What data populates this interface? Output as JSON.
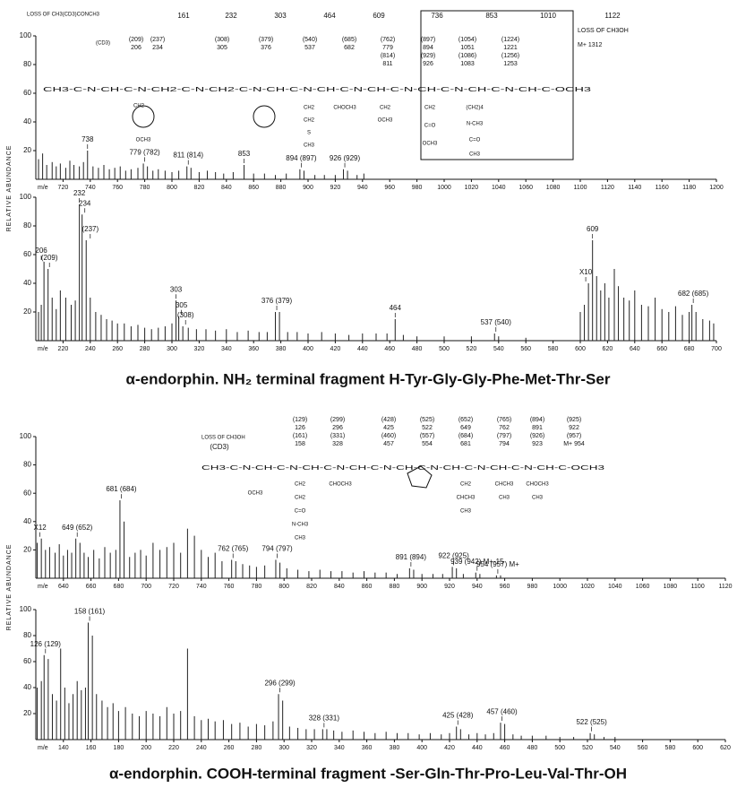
{
  "chart_data": [
    {
      "type": "bar",
      "y_label": "RELATIVE ABUNDANCE",
      "x_label": "m/e",
      "color": "#222222",
      "xlim": [
        700,
        1200
      ],
      "ylim": [
        0,
        100
      ],
      "xticks": [
        720,
        740,
        760,
        780,
        800,
        820,
        840,
        860,
        880,
        900,
        920,
        940,
        960,
        980,
        1000,
        1020,
        1040,
        1060,
        1080,
        1100,
        1120,
        1140,
        1160,
        1180,
        1200
      ],
      "yticks": [
        20,
        40,
        60,
        80,
        100
      ],
      "x": [
        702,
        705,
        708,
        712,
        715,
        718,
        722,
        725,
        728,
        732,
        735,
        738,
        742,
        746,
        750,
        754,
        758,
        762,
        766,
        770,
        775,
        779,
        782,
        786,
        790,
        795,
        800,
        805,
        811,
        814,
        820,
        826,
        832,
        838,
        845,
        853,
        860,
        868,
        876,
        884,
        894,
        897,
        905,
        912,
        920,
        926,
        929,
        936,
        941
      ],
      "values": [
        14,
        18,
        10,
        12,
        9,
        11,
        8,
        13,
        10,
        9,
        12,
        20,
        9,
        8,
        10,
        7,
        8,
        9,
        6,
        7,
        8,
        11,
        9,
        6,
        7,
        6,
        5,
        6,
        9,
        8,
        5,
        6,
        5,
        4,
        5,
        10,
        4,
        4,
        3,
        4,
        7,
        6,
        3,
        3,
        3,
        7,
        6,
        3,
        4
      ],
      "peak_labels": [
        {
          "text": "738",
          "x": 738
        },
        {
          "text": "779 (782)",
          "x": 780
        },
        {
          "text": "811 (814)",
          "x": 812
        },
        {
          "text": "853",
          "x": 853
        },
        {
          "text": "894 (897)",
          "x": 895
        },
        {
          "text": "926 (929)",
          "x": 927
        }
      ]
    },
    {
      "type": "bar",
      "x_label": "m/e",
      "color": "#222222",
      "xlim": [
        200,
        700
      ],
      "ylim": [
        0,
        100
      ],
      "xticks": [
        220,
        240,
        260,
        280,
        300,
        320,
        340,
        360,
        380,
        400,
        420,
        440,
        460,
        480,
        500,
        520,
        540,
        560,
        580,
        600,
        620,
        640,
        660,
        680,
        700
      ],
      "yticks": [
        20,
        40,
        60,
        80,
        100
      ],
      "x": [
        202,
        204,
        206,
        209,
        212,
        215,
        218,
        222,
        226,
        229,
        232,
        234,
        237,
        240,
        244,
        248,
        252,
        256,
        260,
        265,
        270,
        275,
        280,
        285,
        290,
        295,
        300,
        303,
        305,
        308,
        312,
        318,
        325,
        332,
        340,
        348,
        356,
        364,
        370,
        376,
        379,
        385,
        392,
        400,
        410,
        420,
        430,
        440,
        450,
        458,
        464,
        470,
        480,
        500,
        520,
        537,
        540,
        560,
        600,
        603,
        606,
        609,
        612,
        615,
        618,
        621,
        625,
        628,
        632,
        636,
        640,
        645,
        650,
        655,
        660,
        665,
        670,
        675,
        680,
        682,
        685,
        690,
        695,
        698
      ],
      "values": [
        20,
        25,
        55,
        50,
        30,
        22,
        35,
        30,
        25,
        28,
        95,
        88,
        70,
        30,
        20,
        18,
        15,
        14,
        12,
        12,
        10,
        11,
        9,
        8,
        9,
        10,
        12,
        28,
        17,
        10,
        9,
        8,
        8,
        7,
        8,
        6,
        7,
        6,
        6,
        20,
        20,
        6,
        6,
        5,
        6,
        5,
        4,
        5,
        5,
        5,
        15,
        4,
        3,
        3,
        3,
        5,
        3,
        2,
        20,
        25,
        40,
        70,
        45,
        35,
        40,
        30,
        50,
        38,
        30,
        28,
        35,
        25,
        24,
        30,
        22,
        20,
        24,
        18,
        20,
        25,
        20,
        15,
        14,
        12
      ],
      "peak_labels": [
        {
          "text": "206",
          "x": 204
        },
        {
          "text": "(209)",
          "x": 210
        },
        {
          "text": "232",
          "x": 232
        },
        {
          "text": "234",
          "x": 236
        },
        {
          "text": "(237)",
          "x": 240
        },
        {
          "text": "303",
          "x": 303
        },
        {
          "text": "305",
          "x": 307
        },
        {
          "text": "(308)",
          "x": 310
        },
        {
          "text": "376 (379)",
          "x": 377
        },
        {
          "text": "464",
          "x": 464
        },
        {
          "text": "537 (540)",
          "x": 538
        },
        {
          "text": "X10",
          "x": 604
        },
        {
          "text": "609",
          "x": 609
        },
        {
          "text": "682 (685)",
          "x": 683
        }
      ]
    },
    {
      "type": "bar",
      "y_label": "RELATIVE ABUNDANCE",
      "x_label": "m/e",
      "color": "#222222",
      "xlim": [
        620,
        1120
      ],
      "ylim": [
        0,
        100
      ],
      "xticks": [
        640,
        660,
        680,
        700,
        720,
        740,
        760,
        780,
        800,
        820,
        840,
        860,
        880,
        900,
        920,
        940,
        960,
        980,
        1000,
        1020,
        1040,
        1060,
        1080,
        1100,
        1120
      ],
      "yticks": [
        20,
        40,
        60,
        80,
        100
      ],
      "x": [
        621,
        624,
        627,
        630,
        634,
        637,
        640,
        643,
        646,
        649,
        652,
        655,
        658,
        662,
        666,
        670,
        674,
        678,
        681,
        684,
        688,
        692,
        696,
        700,
        705,
        710,
        715,
        720,
        725,
        730,
        735,
        740,
        745,
        750,
        755,
        762,
        765,
        770,
        775,
        780,
        786,
        794,
        797,
        802,
        810,
        818,
        826,
        834,
        842,
        850,
        858,
        866,
        874,
        882,
        891,
        894,
        900,
        908,
        915,
        922,
        925,
        930,
        939,
        942,
        954,
        957
      ],
      "values": [
        25,
        28,
        20,
        22,
        18,
        24,
        16,
        20,
        18,
        28,
        25,
        18,
        15,
        20,
        14,
        22,
        18,
        20,
        55,
        40,
        15,
        18,
        20,
        16,
        25,
        20,
        22,
        25,
        18,
        35,
        30,
        20,
        15,
        18,
        12,
        13,
        12,
        10,
        9,
        8,
        9,
        13,
        11,
        7,
        6,
        5,
        6,
        5,
        5,
        4,
        5,
        4,
        4,
        3,
        7,
        6,
        3,
        3,
        3,
        8,
        7,
        3,
        4,
        3,
        2,
        2
      ],
      "peak_labels": [
        {
          "text": "X12",
          "x": 623
        },
        {
          "text": "649 (652)",
          "x": 650
        },
        {
          "text": "681 (684)",
          "x": 682
        },
        {
          "text": "762 (765)",
          "x": 763
        },
        {
          "text": "794 (797)",
          "x": 795
        },
        {
          "text": "891 (894)",
          "x": 892
        },
        {
          "text": "922 (925)",
          "x": 923
        },
        {
          "text": "939 (942) M+-15",
          "x": 940
        },
        {
          "text": "954 (957) M+",
          "x": 955
        }
      ]
    },
    {
      "type": "bar",
      "x_label": "m/e",
      "color": "#222222",
      "xlim": [
        120,
        620
      ],
      "ylim": [
        0,
        100
      ],
      "xticks": [
        140,
        160,
        180,
        200,
        220,
        240,
        260,
        280,
        300,
        320,
        340,
        360,
        380,
        400,
        420,
        440,
        460,
        480,
        500,
        520,
        540,
        560,
        580,
        600,
        620
      ],
      "yticks": [
        20,
        40,
        60,
        80,
        100
      ],
      "x": [
        121,
        124,
        126,
        129,
        132,
        135,
        138,
        141,
        144,
        147,
        150,
        153,
        156,
        158,
        161,
        164,
        168,
        172,
        176,
        180,
        185,
        190,
        195,
        200,
        205,
        210,
        215,
        220,
        225,
        230,
        235,
        240,
        245,
        250,
        256,
        262,
        268,
        274,
        280,
        286,
        292,
        296,
        299,
        304,
        310,
        316,
        322,
        328,
        331,
        336,
        342,
        350,
        358,
        366,
        374,
        382,
        390,
        398,
        406,
        414,
        420,
        425,
        428,
        434,
        440,
        446,
        452,
        457,
        460,
        466,
        472,
        480,
        490,
        500,
        510,
        522,
        525,
        532,
        540
      ],
      "values": [
        40,
        45,
        65,
        62,
        35,
        30,
        70,
        40,
        28,
        35,
        45,
        38,
        40,
        90,
        80,
        35,
        30,
        25,
        28,
        22,
        25,
        20,
        18,
        22,
        20,
        18,
        25,
        20,
        22,
        70,
        18,
        15,
        16,
        14,
        15,
        12,
        13,
        10,
        12,
        11,
        14,
        35,
        30,
        10,
        9,
        8,
        8,
        8,
        8,
        7,
        6,
        7,
        6,
        5,
        6,
        5,
        5,
        4,
        5,
        4,
        5,
        10,
        8,
        4,
        5,
        4,
        5,
        13,
        12,
        4,
        3,
        3,
        3,
        2,
        2,
        5,
        4,
        2,
        2
      ],
      "peak_labels": [
        {
          "text": "126 (129)",
          "x": 127
        },
        {
          "text": "158 (161)",
          "x": 159
        },
        {
          "text": "296 (299)",
          "x": 297
        },
        {
          "text": "328 (331)",
          "x": 329
        },
        {
          "text": "425 (428)",
          "x": 426
        },
        {
          "text": "457 (460)",
          "x": 458
        },
        {
          "text": "522 (525)",
          "x": 523
        }
      ]
    }
  ],
  "structures": [
    {
      "loss_label": "LOSS OF CH3(CD3)CONCH3",
      "top_masses": [
        "161",
        "232",
        "303",
        "464",
        "609",
        "736",
        "853",
        "1010",
        "1122"
      ],
      "columns": [
        [
          "(209)",
          "206"
        ],
        [
          "(237)",
          "234"
        ],
        [
          "(308)",
          "305"
        ],
        [
          "(379)",
          "376"
        ],
        [
          "(540)",
          "537"
        ],
        [
          "(685)",
          "682"
        ],
        [
          "(762)",
          "779",
          "(814)",
          "811"
        ],
        [
          "(897)",
          "894",
          "(929)",
          "926"
        ],
        [
          "(1054)",
          "1051",
          "(1086)",
          "1083"
        ],
        [
          "(1224)",
          "1221",
          "(1256)",
          "1253"
        ]
      ],
      "end_labels": [
        "LOSS OF CH3OH",
        "M+ 1312"
      ],
      "backbone": "CH3-C-N-CH-C-N-CH2-C-N-CH2-C-N-CH-C-N-CH-C-N-CH-C-N-CH-C-N-CH-C-N-CH-C-OCH3",
      "side_groups": [
        "(CD3)",
        "CH2",
        "OCH3",
        "CH2",
        "CH2",
        "S",
        "CH3",
        "CHOCH3",
        "CH2",
        "OCH3",
        "CH2",
        "C=O",
        "OCH3",
        "(CH2)4",
        "N-CH3",
        "C=O",
        "CH3"
      ]
    },
    {
      "loss_label": "LOSS OF CH3OH",
      "top_masses": [
        "(CD3)"
      ],
      "columns": [
        [
          "(129)",
          "126",
          "(161)",
          "158"
        ],
        [
          "(299)",
          "296",
          "(331)",
          "328"
        ],
        [
          "(428)",
          "425",
          "(460)",
          "457"
        ],
        [
          "(525)",
          "522",
          "(557)",
          "554"
        ],
        [
          "(652)",
          "649",
          "(684)",
          "681"
        ],
        [
          "(765)",
          "762",
          "(797)",
          "794"
        ],
        [
          "(894)",
          "891",
          "(926)",
          "923"
        ],
        [
          "(925)",
          "922",
          "(957)",
          "M+ 954"
        ]
      ],
      "end_labels": [],
      "backbone": "CH3-C-N-CH-C-N-CH-C-N-CH-C-N-CH-C-N-CH-C-N-CH-C-N-CH-C-OCH3",
      "side_groups": [
        "OCH3",
        "CH2",
        "CH2",
        "C=O",
        "N-CH3",
        "CH3",
        "CHOCH3",
        "CH2",
        "CHCH3",
        "CH3",
        "CHCH3",
        "CH3",
        "CHOCH3",
        "CH3"
      ]
    }
  ],
  "captions": [
    "α-endorphin. NH₂ terminal fragment H-Tyr-Gly-Gly-Phe-Met-Thr-Ser",
    "α-endorphin. COOH-terminal fragment -Ser-Gln-Thr-Pro-Leu-Val-Thr-OH"
  ]
}
